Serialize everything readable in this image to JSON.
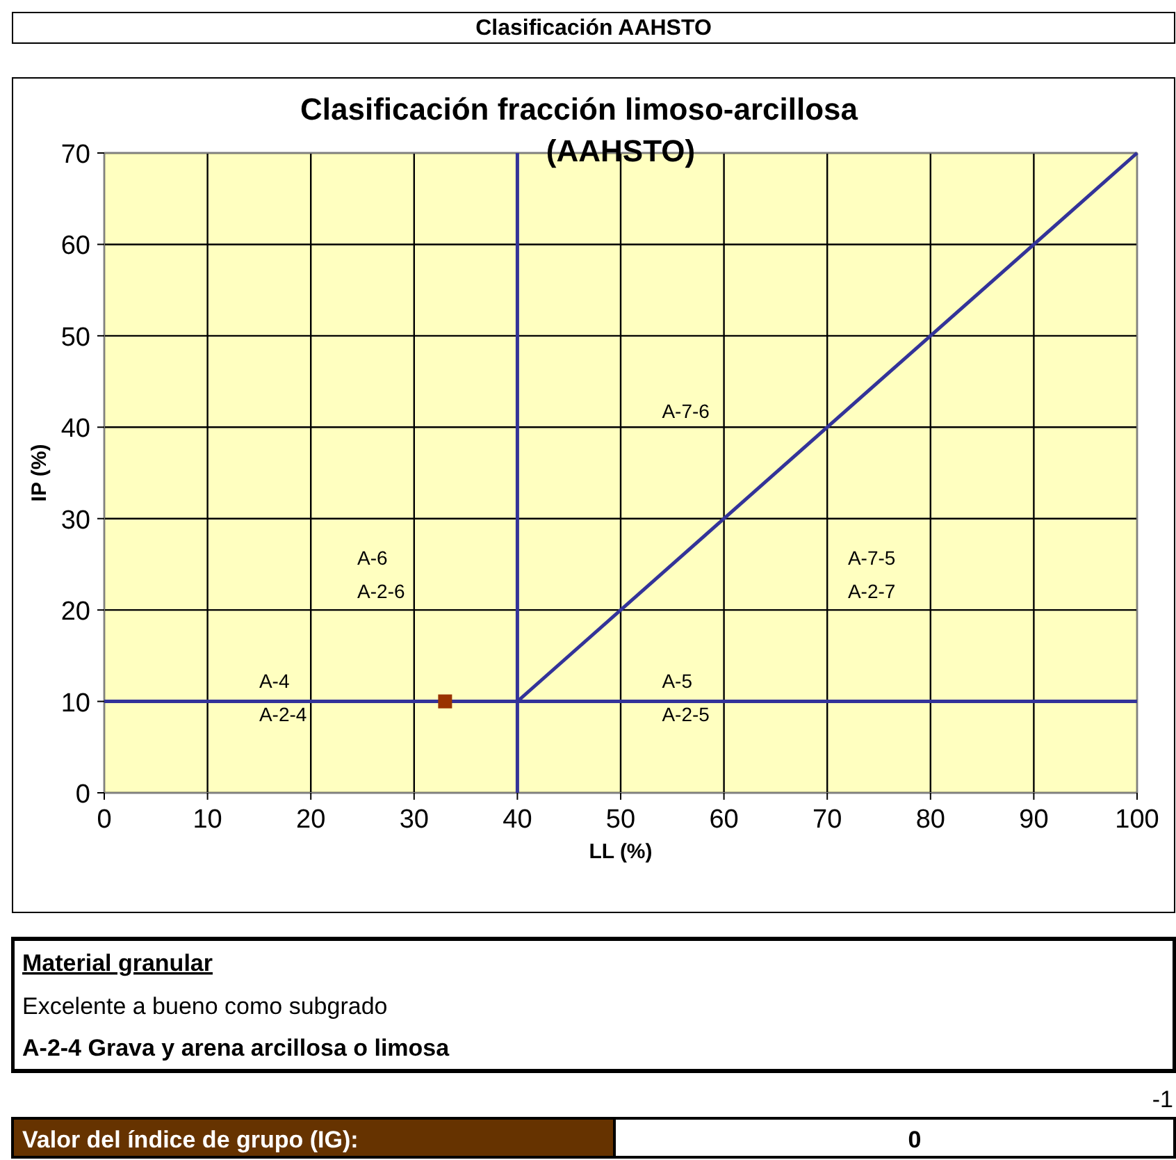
{
  "chart_data": {
    "type": "scatter",
    "title": "Clasificación AAHSTO",
    "subtitle": "Clasificación fracción limoso-arcillosa\n(AAHSTO)",
    "xlabel": "LL (%)",
    "ylabel": "IP (%)",
    "xlim": [
      0,
      100
    ],
    "xticks": [
      0,
      10,
      20,
      30,
      40,
      50,
      60,
      70,
      80,
      90,
      100
    ],
    "ylim": [
      0,
      70
    ],
    "yticks": [
      0,
      10,
      20,
      30,
      40,
      50,
      60,
      70
    ],
    "grid": true,
    "series": [
      {
        "type": "line",
        "color": "#333399",
        "x": [
          40,
          100
        ],
        "values": [
          10,
          70
        ],
        "marker": "none",
        "line_style": "solid"
      },
      {
        "type": "line",
        "color": "#333399",
        "x": [
          40,
          40
        ],
        "values": [
          0,
          70
        ],
        "marker": "none",
        "line_style": "solid"
      },
      {
        "type": "line",
        "color": "#333399",
        "x": [
          0,
          100
        ],
        "values": [
          10,
          10
        ],
        "marker": "none",
        "line_style": "solid"
      },
      {
        "type": "scatter",
        "color": "#993300",
        "x": [
          33
        ],
        "values": [
          10
        ],
        "marker": "square"
      }
    ],
    "annotations": [
      "A-4\nA-2-4",
      "A-6\nA-2-6",
      "A-7-6",
      "A-7-5\nA-2-7",
      "A-5\nA-2-5",
      "Material granular",
      "Excelente a bueno como subgrado",
      "A-2-4 Grava y arena arcillosa o limosa",
      "-1",
      "Valor del índice de grupo (IG):",
      "0"
    ]
  }
}
